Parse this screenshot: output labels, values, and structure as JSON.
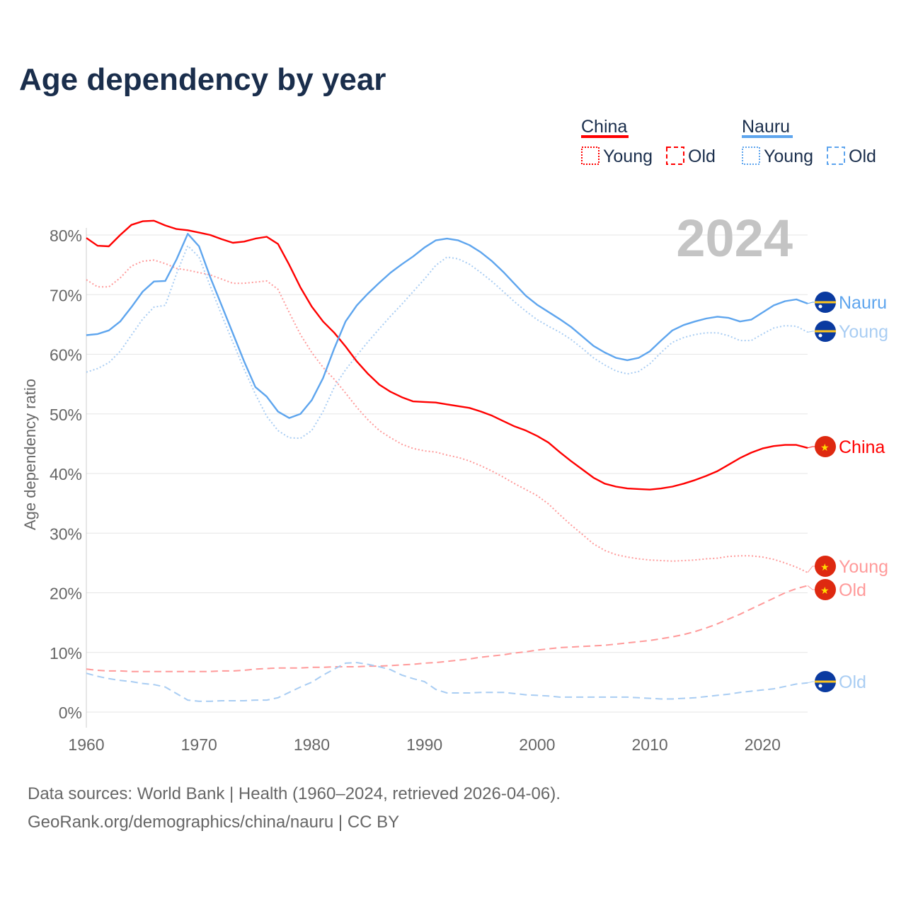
{
  "chart_data": {
    "type": "line",
    "title": "Age dependency by year",
    "xlabel": "",
    "ylabel": "Age dependency ratio",
    "xlim": [
      1960,
      2024
    ],
    "ylim": [
      0,
      80
    ],
    "x_ticks": [
      "1960",
      "1970",
      "1980",
      "1990",
      "2000",
      "2010",
      "2020"
    ],
    "y_ticks": [
      "0%",
      "10%",
      "20%",
      "30%",
      "40%",
      "50%",
      "60%",
      "70%",
      "80%"
    ],
    "year_watermark": "2024",
    "grid": true,
    "legend": {
      "placement": "top-right",
      "groups": [
        {
          "name": "China",
          "items": [
            "Young",
            "Old"
          ],
          "color": "#ff0000"
        },
        {
          "name": "Nauru",
          "items": [
            "Young",
            "Old"
          ],
          "color": "#5ea5ee"
        }
      ]
    },
    "series": [
      {
        "name": "China",
        "label": "China",
        "color": "#ff0000",
        "style": "solid",
        "start": 1960,
        "values": [
          79.5,
          78.2,
          78.1,
          80,
          81.7,
          82.3,
          82.4,
          81.6,
          81,
          80.8,
          80.4,
          80,
          79.3,
          78.7,
          78.9,
          79.4,
          79.7,
          78.5,
          75,
          71.2,
          68,
          65.5,
          63.6,
          61.3,
          58.8,
          56.7,
          54.9,
          53.7,
          52.8,
          52.1,
          52,
          51.9,
          51.6,
          51.3,
          51,
          50.4,
          49.7,
          48.8,
          47.9,
          47.2,
          46.3,
          45.2,
          43.6,
          42.1,
          40.7,
          39.3,
          38.3,
          37.8,
          37.5,
          37.4,
          37.3,
          37.5,
          37.8,
          38.3,
          38.9,
          39.6,
          40.4,
          41.5,
          42.6,
          43.5,
          44.2,
          44.6,
          44.8,
          44.8,
          44.3
        ]
      },
      {
        "name": "China Young",
        "label": "Young",
        "color": "#ff9a9a",
        "style": "dotted",
        "start": 1960,
        "values": [
          72.5,
          71.3,
          71.3,
          72.8,
          74.8,
          75.6,
          75.8,
          75.2,
          74.4,
          74.1,
          73.7,
          73.3,
          72.6,
          71.9,
          71.9,
          72.1,
          72.3,
          70.9,
          67,
          63.3,
          60.3,
          57.8,
          55.8,
          53.5,
          51.1,
          49,
          47.2,
          46,
          44.9,
          44.2,
          43.8,
          43.6,
          43.1,
          42.7,
          42.1,
          41.3,
          40.4,
          39.4,
          38.3,
          37.3,
          36.3,
          34.9,
          33.1,
          31.4,
          29.8,
          28.2,
          27.1,
          26.4,
          26,
          25.7,
          25.5,
          25.4,
          25.3,
          25.4,
          25.5,
          25.7,
          25.8,
          26.1,
          26.2,
          26.2,
          26,
          25.6,
          25,
          24.3,
          23.4
        ]
      },
      {
        "name": "China Old",
        "label": "Old",
        "color": "#ff9a9a",
        "style": "dashed",
        "start": 1960,
        "values": [
          7.2,
          7,
          6.9,
          6.9,
          6.8,
          6.8,
          6.8,
          6.8,
          6.8,
          6.8,
          6.8,
          6.8,
          6.9,
          6.9,
          7,
          7.2,
          7.3,
          7.4,
          7.4,
          7.4,
          7.5,
          7.5,
          7.6,
          7.6,
          7.6,
          7.7,
          7.7,
          7.8,
          7.9,
          8,
          8.2,
          8.3,
          8.5,
          8.7,
          8.9,
          9.2,
          9.4,
          9.6,
          9.9,
          10.1,
          10.4,
          10.6,
          10.8,
          10.9,
          11,
          11.1,
          11.2,
          11.4,
          11.6,
          11.8,
          12,
          12.3,
          12.6,
          13,
          13.5,
          14.1,
          14.8,
          15.6,
          16.4,
          17.3,
          18.2,
          19.1,
          20,
          20.7,
          21.2
        ]
      },
      {
        "name": "Nauru",
        "label": "Nauru",
        "color": "#5ea5ee",
        "style": "solid",
        "start": 1960,
        "values": [
          63.2,
          63.4,
          64,
          65.5,
          67.9,
          70.5,
          72.2,
          72.3,
          75.9,
          80.2,
          78.1,
          72.9,
          68.2,
          63.5,
          58.8,
          54.5,
          52.9,
          50.4,
          49.3,
          50,
          52.3,
          56,
          61,
          65.5,
          68.2,
          70.2,
          72,
          73.7,
          75.1,
          76.4,
          77.9,
          79.1,
          79.4,
          79.1,
          78.3,
          77.1,
          75.6,
          73.8,
          71.8,
          69.8,
          68.3,
          67.1,
          65.9,
          64.6,
          63,
          61.4,
          60.3,
          59.4,
          59,
          59.4,
          60.5,
          62.3,
          64,
          64.9,
          65.5,
          66,
          66.3,
          66.1,
          65.5,
          65.8,
          67,
          68.2,
          68.9,
          69.2,
          68.5
        ]
      },
      {
        "name": "Nauru Young",
        "label": "Young",
        "color": "#a9cdf3",
        "style": "dotted",
        "start": 1960,
        "values": [
          57,
          57.6,
          58.6,
          60.5,
          63.2,
          65.9,
          67.9,
          68.2,
          73.5,
          78.2,
          76.3,
          71.4,
          66.6,
          62,
          57.5,
          53.3,
          49.6,
          47.2,
          46,
          45.9,
          47.2,
          50.4,
          54.5,
          57.4,
          59.8,
          62.1,
          64.3,
          66.4,
          68.4,
          70.5,
          72.6,
          74.9,
          76.3,
          76,
          75.1,
          73.7,
          72.2,
          70.5,
          68.8,
          67.2,
          65.8,
          64.7,
          63.7,
          62.5,
          61,
          59.4,
          58.2,
          57.2,
          56.7,
          57.1,
          58.4,
          60.3,
          62,
          62.8,
          63.3,
          63.6,
          63.6,
          63.1,
          62.3,
          62.3,
          63.4,
          64.4,
          64.8,
          64.7,
          63.7
        ]
      },
      {
        "name": "Nauru Old",
        "label": "Old",
        "color": "#a9cdf3",
        "style": "dashed",
        "start": 1960,
        "values": [
          6.5,
          6,
          5.6,
          5.3,
          5.1,
          4.8,
          4.6,
          4.2,
          3.1,
          2,
          1.8,
          1.8,
          1.9,
          1.9,
          1.9,
          2,
          2,
          2.4,
          3.3,
          4.2,
          5,
          6.2,
          7.2,
          8.2,
          8.3,
          8,
          7.6,
          7.1,
          6.2,
          5.6,
          5.1,
          3.8,
          3.2,
          3.2,
          3.2,
          3.3,
          3.3,
          3.3,
          3.1,
          2.9,
          2.8,
          2.7,
          2.5,
          2.5,
          2.5,
          2.5,
          2.5,
          2.5,
          2.5,
          2.4,
          2.3,
          2.2,
          2.2,
          2.3,
          2.4,
          2.6,
          2.8,
          3,
          3.3,
          3.5,
          3.7,
          3.9,
          4.3,
          4.7,
          4.9
        ]
      }
    ]
  },
  "footer": {
    "source": "Data sources: World Bank | Health (1960–2024, retrieved 2026-04-06).",
    "credit": "GeoRank.org/demographics/china/nauru | CC BY"
  }
}
